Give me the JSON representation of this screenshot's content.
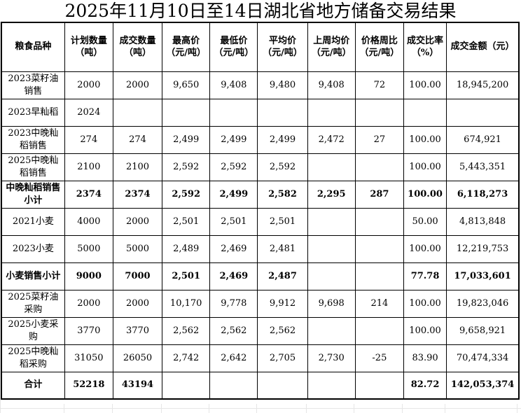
{
  "title": "2025年11月10日至14日湖北省地方储备交易结果",
  "table": {
    "columns": [
      "粮食品种",
      "计划数量\n（吨）",
      "成交数量\n（吨）",
      "最高价\n（元/吨）",
      "最低价\n（元/吨）",
      "平均价\n（元/吨）",
      "上周均价\n（元/吨）",
      "价格周比\n（元/吨）",
      "成交比率\n（%）",
      "成交金额（元）"
    ],
    "rows": [
      {
        "bold": false,
        "cells": [
          "2023菜籽油销售",
          "2000",
          "2000",
          "9,650",
          "9,408",
          "9,480",
          "9,408",
          "72",
          "100.00",
          "18,945,200"
        ]
      },
      {
        "bold": false,
        "cells": [
          "2023早籼稻",
          "2024",
          "",
          "",
          "",
          "",
          "",
          "",
          "",
          ""
        ]
      },
      {
        "bold": false,
        "cells": [
          "2023中晚籼稻销售",
          "274",
          "274",
          "2,499",
          "2,499",
          "2,499",
          "2,472",
          "27",
          "100.00",
          "674,921"
        ]
      },
      {
        "bold": false,
        "cells": [
          "2025中晚籼稻销售",
          "2100",
          "2100",
          "2,592",
          "2,592",
          "2,592",
          "",
          "",
          "100.00",
          "5,443,351"
        ]
      },
      {
        "bold": true,
        "cells": [
          "中晚籼稻销售小计",
          "2374",
          "2374",
          "2,592",
          "2,499",
          "2,582",
          "2,295",
          "287",
          "100.00",
          "6,118,273"
        ]
      },
      {
        "bold": false,
        "cells": [
          "2021小麦",
          "4000",
          "2000",
          "2,501",
          "2,501",
          "2,501",
          "",
          "",
          "50.00",
          "4,813,848"
        ]
      },
      {
        "bold": false,
        "cells": [
          "2023小麦",
          "5000",
          "5000",
          "2,489",
          "2,469",
          "2,481",
          "",
          "",
          "100.00",
          "12,219,753"
        ]
      },
      {
        "bold": true,
        "cells": [
          "小麦销售小计",
          "9000",
          "7000",
          "2,501",
          "2,469",
          "2,487",
          "",
          "",
          "77.78",
          "17,033,601"
        ]
      },
      {
        "bold": false,
        "cells": [
          "2025菜籽油采购",
          "2000",
          "2000",
          "10,170",
          "9,778",
          "9,912",
          "9,698",
          "214",
          "100.00",
          "19,823,046"
        ]
      },
      {
        "bold": false,
        "cells": [
          "2025小麦采购",
          "3770",
          "3770",
          "2,562",
          "2,562",
          "2,562",
          "",
          "",
          "100.00",
          "9,658,921"
        ]
      },
      {
        "bold": false,
        "cells": [
          "2025中晚籼稻采购",
          "31050",
          "26050",
          "2,742",
          "2,642",
          "2,705",
          "2,730",
          "-25",
          "83.90",
          "70,474,334"
        ]
      },
      {
        "bold": true,
        "cells": [
          "合计",
          "52218",
          "43194",
          "",
          "",
          "",
          "",
          "",
          "82.72",
          "142,053,374"
        ]
      }
    ]
  }
}
